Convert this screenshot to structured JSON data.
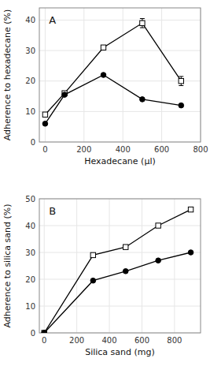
{
  "chart_data": [
    {
      "type": "line",
      "title": "A",
      "xlabel": "Hexadecane (μl)",
      "ylabel": "Adherence to hexadecane (%)",
      "x": [
        0,
        100,
        300,
        500,
        700
      ],
      "xlim": [
        -30,
        800
      ],
      "ylim": [
        0,
        44
      ],
      "xticks": [
        0,
        200,
        400,
        600,
        800
      ],
      "yticks": [
        0,
        10,
        20,
        30,
        40
      ],
      "series": [
        {
          "values": [
            9,
            16,
            31,
            39,
            20
          ],
          "errors": [
            0,
            0,
            0,
            1.5,
            1.5
          ],
          "marker": "square",
          "color": "#000000"
        },
        {
          "values": [
            6,
            15.5,
            22,
            14,
            12
          ],
          "marker": "circle",
          "color": "#000000"
        }
      ]
    },
    {
      "type": "line",
      "title": "B",
      "xlabel": "Silica sand (mg)",
      "ylabel": "Adherence to silica sand (%)",
      "x": [
        0,
        300,
        500,
        700,
        900
      ],
      "xlim": [
        -30,
        960
      ],
      "ylim": [
        0,
        50
      ],
      "xticks": [
        0,
        200,
        400,
        600,
        800
      ],
      "yticks": [
        0,
        10,
        20,
        30,
        40,
        50
      ],
      "series": [
        {
          "values": [
            0,
            29,
            32,
            40,
            46
          ],
          "marker": "square",
          "color": "#000000"
        },
        {
          "values": [
            0,
            19.5,
            23,
            27,
            30
          ],
          "marker": "circle",
          "color": "#000000"
        }
      ]
    }
  ]
}
